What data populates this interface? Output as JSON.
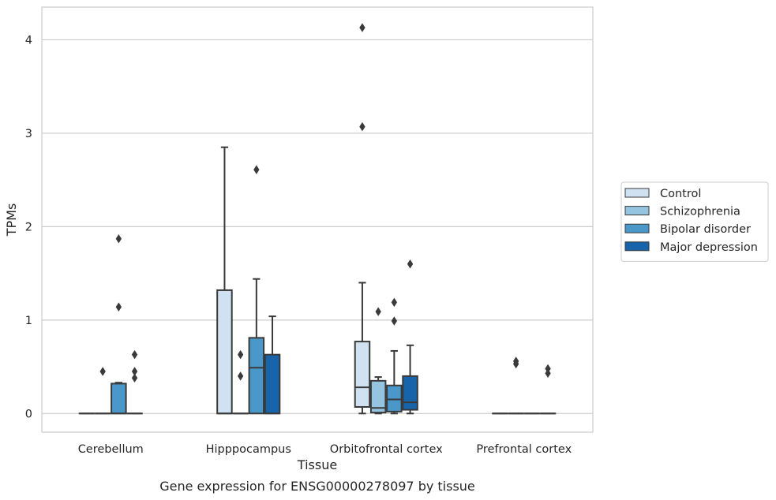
{
  "chart_data": {
    "type": "box",
    "caption": "Gene expression for ENSG00000278097 by tissue",
    "xlabel": "Tissue",
    "ylabel": "TPMs",
    "ylim": [
      -0.2,
      4.35
    ],
    "yticks": [
      0,
      1,
      2,
      3,
      4
    ],
    "grid": true,
    "legend_position": "right",
    "categories": [
      "Cerebellum",
      "Hipppocampus",
      "Orbitofrontal cortex",
      "Prefrontal cortex"
    ],
    "series": [
      {
        "name": "Control",
        "color": "#d0e1f2",
        "boxes": [
          {
            "whislo": 0,
            "q1": 0,
            "med": 0,
            "q3": 0,
            "whishi": 0,
            "fliers": []
          },
          {
            "whislo": 0,
            "q1": 0,
            "med": 0,
            "q3": 1.32,
            "whishi": 2.85,
            "fliers": []
          },
          {
            "whislo": 0,
            "q1": 0.07,
            "med": 0.28,
            "q3": 0.77,
            "whishi": 1.4,
            "fliers": [
              3.07,
              4.13
            ]
          },
          {
            "whislo": 0,
            "q1": 0,
            "med": 0,
            "q3": 0,
            "whishi": 0,
            "fliers": []
          }
        ]
      },
      {
        "name": "Schizophrenia",
        "color": "#94c4df",
        "boxes": [
          {
            "whislo": 0,
            "q1": 0,
            "med": 0,
            "q3": 0,
            "whishi": 0,
            "fliers": [
              0.45
            ]
          },
          {
            "whislo": 0,
            "q1": 0,
            "med": 0,
            "q3": 0,
            "whishi": 0,
            "fliers": [
              0.4,
              0.63
            ]
          },
          {
            "whislo": 0,
            "q1": 0.01,
            "med": 0.06,
            "q3": 0.35,
            "whishi": 0.39,
            "fliers": [
              1.09
            ]
          },
          {
            "whislo": 0,
            "q1": 0,
            "med": 0,
            "q3": 0,
            "whishi": 0,
            "fliers": [
              0.53,
              0.56
            ]
          }
        ]
      },
      {
        "name": "Bipolar disorder",
        "color": "#4a98c9",
        "boxes": [
          {
            "whislo": 0,
            "q1": 0,
            "med": 0,
            "q3": 0.32,
            "whishi": 0.33,
            "fliers": [
              1.14,
              1.87
            ]
          },
          {
            "whislo": 0,
            "q1": 0,
            "med": 0.49,
            "q3": 0.81,
            "whishi": 1.44,
            "fliers": [
              2.61
            ]
          },
          {
            "whislo": 0,
            "q1": 0.02,
            "med": 0.15,
            "q3": 0.3,
            "whishi": 0.67,
            "fliers": [
              0.99,
              1.19
            ]
          },
          {
            "whislo": 0,
            "q1": 0,
            "med": 0,
            "q3": 0,
            "whishi": 0,
            "fliers": []
          }
        ]
      },
      {
        "name": "Major depression",
        "color": "#1764ab",
        "boxes": [
          {
            "whislo": 0,
            "q1": 0,
            "med": 0,
            "q3": 0,
            "whishi": 0,
            "fliers": [
              0.38,
              0.45,
              0.63
            ]
          },
          {
            "whislo": 0,
            "q1": 0,
            "med": 0,
            "q3": 0.63,
            "whishi": 1.04,
            "fliers": []
          },
          {
            "whislo": 0,
            "q1": 0.04,
            "med": 0.12,
            "q3": 0.4,
            "whishi": 0.73,
            "fliers": [
              1.6
            ]
          },
          {
            "whislo": 0,
            "q1": 0,
            "med": 0,
            "q3": 0,
            "whishi": 0,
            "fliers": [
              0.43,
              0.48
            ]
          }
        ]
      }
    ]
  },
  "colors": {
    "grid": "#cccccc",
    "frame": "#cccccc",
    "line": "#3a3a3a",
    "text": "#262626"
  }
}
